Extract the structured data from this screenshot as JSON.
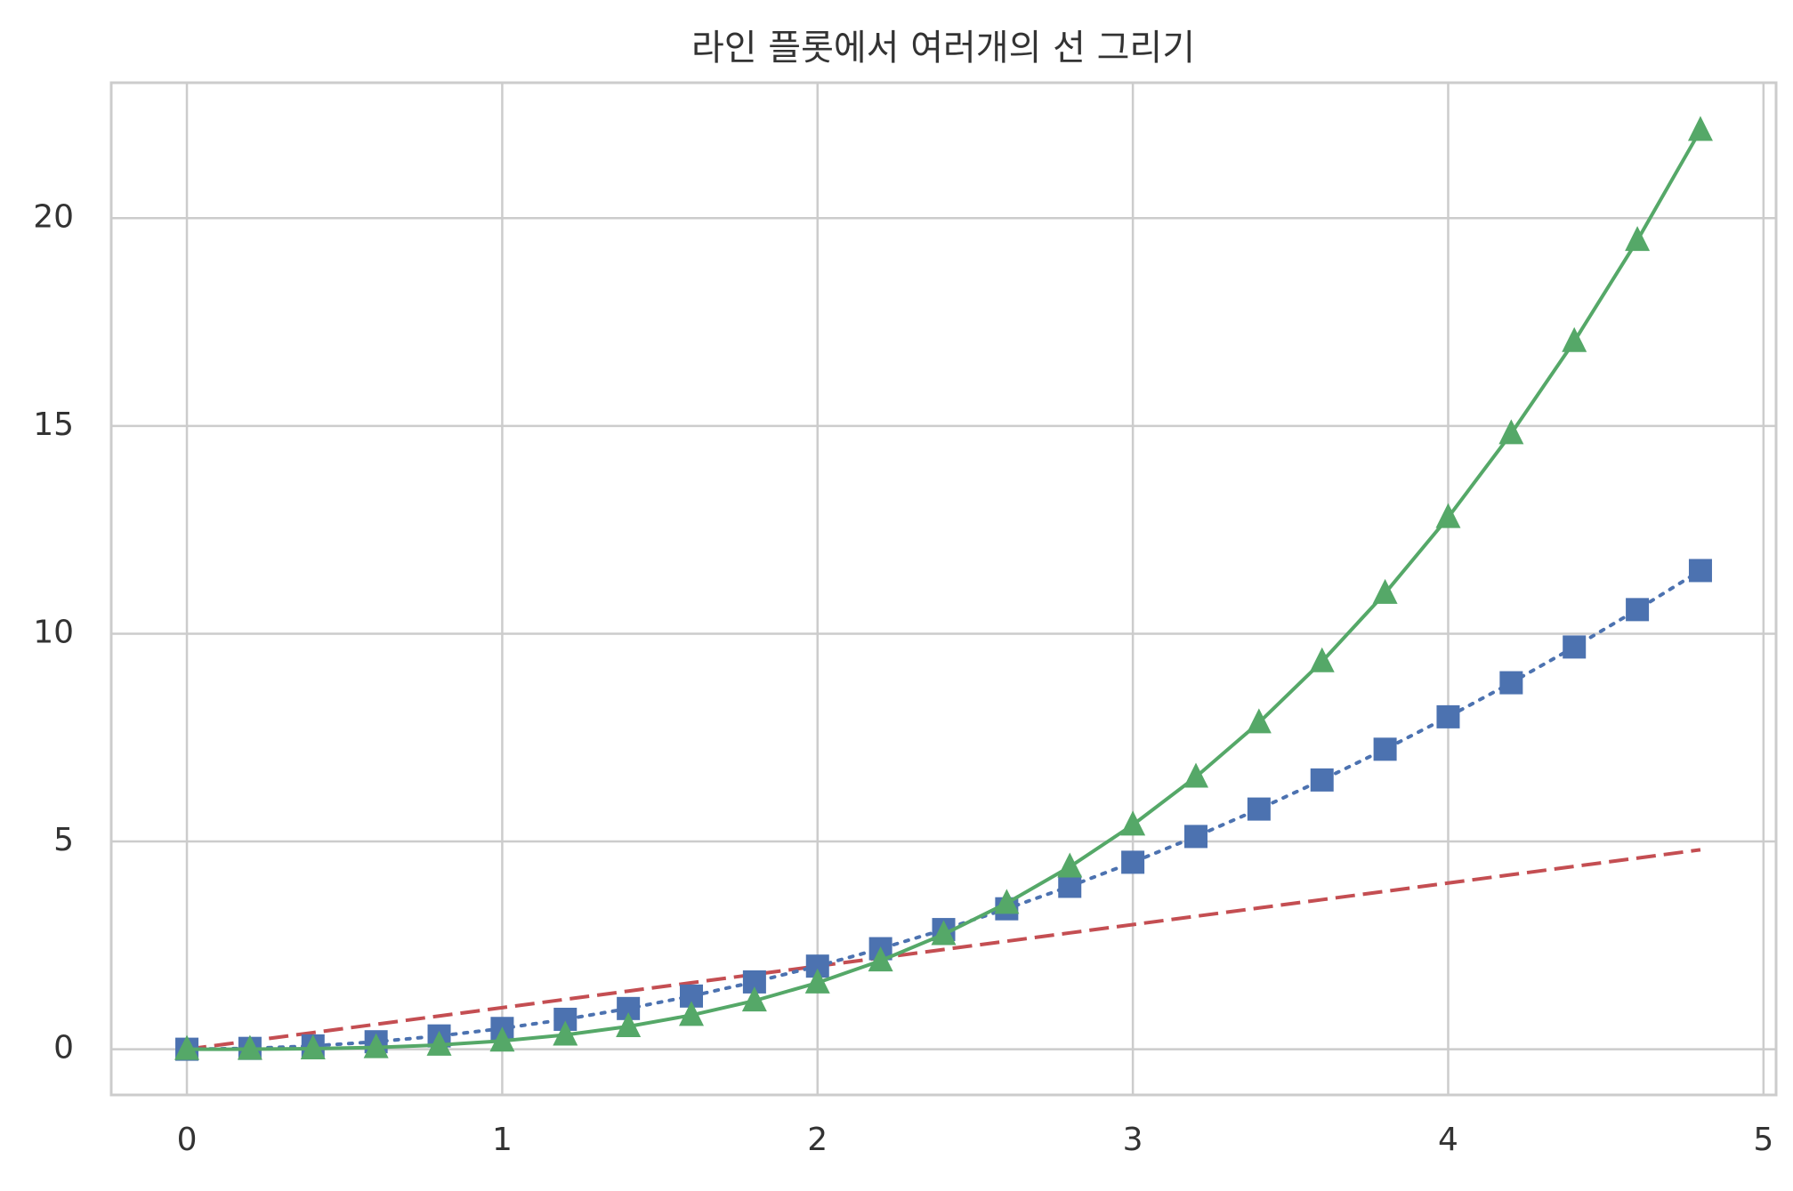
{
  "chart_data": {
    "type": "line",
    "title": "라인 플롯에서 여러개의 선 그리기",
    "x": [
      0,
      0.2,
      0.4,
      0.6,
      0.8,
      1.0,
      1.2,
      1.4,
      1.6,
      1.8,
      2.0,
      2.2,
      2.4,
      2.6,
      2.8,
      3.0,
      3.2,
      3.4,
      3.6,
      3.8,
      4.0,
      4.2,
      4.4,
      4.6,
      4.8
    ],
    "series": [
      {
        "color": "#c44e52",
        "linestyle": "dashed",
        "marker": "none",
        "values": [
          0,
          0.2,
          0.4,
          0.6,
          0.8,
          1.0,
          1.2,
          1.4,
          1.6,
          1.8,
          2.0,
          2.2,
          2.4,
          2.6,
          2.8,
          3.0,
          3.2,
          3.4,
          3.6,
          3.8,
          4.0,
          4.2,
          4.4,
          4.6,
          4.8
        ]
      },
      {
        "color": "#4c72b0",
        "linestyle": "dotted",
        "marker": "square",
        "values": [
          0,
          0.02,
          0.08,
          0.18,
          0.32,
          0.5,
          0.72,
          0.98,
          1.28,
          1.62,
          2.0,
          2.42,
          2.88,
          3.38,
          3.92,
          4.5,
          5.12,
          5.78,
          6.48,
          7.22,
          8.0,
          8.82,
          9.68,
          10.58,
          11.52
        ]
      },
      {
        "color": "#55a868",
        "linestyle": "solid",
        "marker": "triangle",
        "values": [
          0,
          0.0016,
          0.0128,
          0.0432,
          0.1024,
          0.2,
          0.3456,
          0.5488,
          0.8192,
          1.1664,
          1.6,
          2.1296,
          2.7648,
          3.5152,
          4.3904,
          5.4,
          6.5536,
          7.8608,
          9.3312,
          10.9744,
          12.8,
          14.8176,
          17.0368,
          19.4672,
          22.1184
        ]
      }
    ],
    "xlim": [
      -0.24,
      5.04
    ],
    "ylim": [
      -1.1,
      23.26
    ],
    "xticks": [
      0,
      1,
      2,
      3,
      4,
      5
    ],
    "yticks": [
      0,
      5,
      10,
      15,
      20
    ],
    "grid": true
  }
}
